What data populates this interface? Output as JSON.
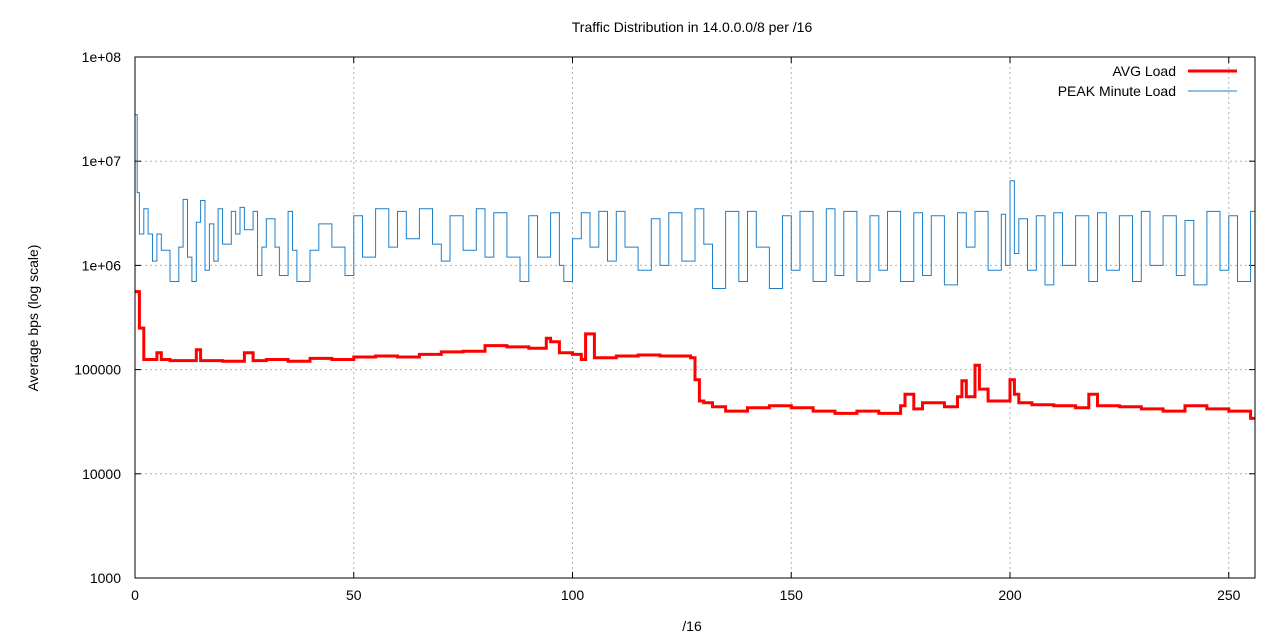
{
  "chart_data": {
    "type": "line",
    "title": "Traffic Distribution in 14.0.0.0/8 per /16",
    "xlabel": "/16",
    "ylabel": "Average bps (log scale)",
    "xlim": [
      0,
      256
    ],
    "ylim": [
      1000,
      100000000
    ],
    "yscale": "log",
    "grid": true,
    "legend_position": "top-right",
    "x_ticks": [
      0,
      50,
      100,
      150,
      200,
      250
    ],
    "x_tick_labels": [
      "0",
      "50",
      "100",
      "150",
      "200",
      "250"
    ],
    "y_ticks": [
      1000,
      10000,
      100000,
      1000000,
      10000000,
      100000000
    ],
    "y_tick_labels": [
      "1000",
      "10000",
      "100000",
      "1e+06",
      "1e+07",
      "1e+08"
    ],
    "series": [
      {
        "name": "AVG Load",
        "color": "#ff0000",
        "style": "steps",
        "x": [
          0,
          1,
          2,
          5,
          6,
          8,
          14,
          15,
          20,
          24,
          25,
          27,
          30,
          35,
          40,
          45,
          50,
          55,
          60,
          65,
          70,
          75,
          80,
          85,
          90,
          94,
          95,
          97,
          100,
          102,
          103,
          105,
          110,
          115,
          120,
          125,
          127,
          128,
          129,
          130,
          132,
          135,
          140,
          145,
          150,
          155,
          160,
          165,
          170,
          175,
          176,
          178,
          180,
          185,
          188,
          189,
          190,
          192,
          193,
          195,
          200,
          201,
          202,
          205,
          210,
          215,
          218,
          220,
          225,
          230,
          235,
          240,
          245,
          250,
          255
        ],
        "y": [
          560000,
          250000,
          125000,
          145000,
          125000,
          122000,
          155000,
          122000,
          120000,
          120000,
          145000,
          122000,
          125000,
          120000,
          128000,
          125000,
          132000,
          135000,
          132000,
          140000,
          148000,
          150000,
          170000,
          165000,
          160000,
          200000,
          185000,
          145000,
          140000,
          125000,
          220000,
          130000,
          135000,
          138000,
          135000,
          135000,
          130000,
          80000,
          50000,
          48000,
          44000,
          40000,
          43000,
          45000,
          43000,
          40000,
          38000,
          40000,
          38000,
          45000,
          58000,
          42000,
          48000,
          44000,
          55000,
          78000,
          55000,
          110000,
          65000,
          50000,
          80000,
          58000,
          48000,
          46000,
          45000,
          43000,
          58000,
          45000,
          44000,
          42000,
          40000,
          45000,
          42000,
          40000,
          34000
        ]
      },
      {
        "name": "PEAK Minute Load",
        "color": "#1f7fc8",
        "style": "steps",
        "x": [
          0,
          0.5,
          1,
          2,
          3,
          4,
          5,
          6,
          8,
          10,
          11,
          12,
          13,
          14,
          15,
          16,
          17,
          18,
          19,
          20,
          22,
          23,
          24,
          25,
          27,
          28,
          29,
          30,
          32,
          33,
          35,
          36,
          37,
          40,
          42,
          45,
          48,
          50,
          52,
          55,
          58,
          60,
          62,
          65,
          68,
          70,
          72,
          75,
          78,
          80,
          82,
          85,
          88,
          90,
          92,
          95,
          97,
          98,
          100,
          102,
          104,
          106,
          108,
          110,
          112,
          115,
          118,
          120,
          122,
          125,
          128,
          130,
          132,
          135,
          138,
          140,
          142,
          145,
          148,
          150,
          152,
          155,
          158,
          160,
          162,
          165,
          168,
          170,
          172,
          175,
          178,
          180,
          182,
          185,
          188,
          190,
          192,
          195,
          198,
          199,
          200,
          201,
          202,
          204,
          206,
          208,
          210,
          212,
          215,
          218,
          220,
          222,
          225,
          228,
          230,
          232,
          235,
          238,
          240,
          242,
          245,
          248,
          250,
          252,
          255
        ],
        "y": [
          28000000,
          5000000,
          2000000,
          3500000,
          2000000,
          1100000,
          2000000,
          1400000,
          700000,
          1500000,
          4300000,
          1200000,
          700000,
          2600000,
          4200000,
          900000,
          2500000,
          1100000,
          3500000,
          1600000,
          3300000,
          2000000,
          3600000,
          2200000,
          3300000,
          800000,
          1500000,
          2800000,
          1500000,
          800000,
          3300000,
          1400000,
          700000,
          1400000,
          2500000,
          1500000,
          800000,
          3000000,
          1200000,
          3500000,
          1500000,
          3300000,
          1800000,
          3500000,
          1600000,
          1100000,
          3000000,
          1400000,
          3500000,
          1200000,
          3200000,
          1200000,
          700000,
          3000000,
          1200000,
          3200000,
          1000000,
          700000,
          1800000,
          3200000,
          1500000,
          3300000,
          1100000,
          3300000,
          1500000,
          900000,
          2800000,
          1000000,
          3200000,
          1100000,
          3500000,
          1600000,
          600000,
          3300000,
          700000,
          3300000,
          1500000,
          600000,
          3000000,
          900000,
          3300000,
          700000,
          3500000,
          800000,
          3300000,
          700000,
          3000000,
          900000,
          3300000,
          700000,
          3200000,
          800000,
          3000000,
          650000,
          3200000,
          1500000,
          3300000,
          900000,
          3100000,
          1000000,
          6500000,
          1300000,
          2800000,
          900000,
          3000000,
          650000,
          3200000,
          1000000,
          3000000,
          700000,
          3200000,
          900000,
          3000000,
          700000,
          3300000,
          1000000,
          3000000,
          800000,
          2700000,
          650000,
          3300000,
          900000,
          3000000,
          700000,
          3300000
        ]
      }
    ]
  }
}
